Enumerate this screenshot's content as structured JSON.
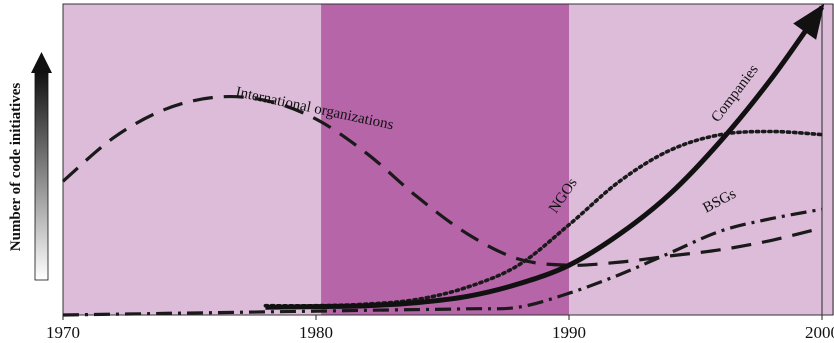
{
  "chart_data": {
    "type": "line",
    "title": "",
    "xlabel": "",
    "ylabel": "Number of code initiatives",
    "xlim": [
      1970,
      2001
    ],
    "ylim": [
      0,
      10
    ],
    "x_ticks": [
      "1970",
      "1980",
      "1990",
      "2000"
    ],
    "x_tick_values": [
      1970,
      1980,
      1990,
      2000
    ],
    "grid": false,
    "legend": "none",
    "background_bands": [
      {
        "from": 1970,
        "to": 1980.2,
        "color": "#dcbcd9"
      },
      {
        "from": 1980.2,
        "to": 1990,
        "color": "#b665a9"
      },
      {
        "from": 1990,
        "to": 2001,
        "color": "#dcbcd9"
      }
    ],
    "reference_line_x": 2000,
    "series": [
      {
        "name": "International organizations",
        "style": "dashed",
        "color": "#1a1a1a",
        "x": [
          1970,
          1972,
          1974,
          1976,
          1978,
          1980,
          1982,
          1984,
          1986,
          1988,
          1990,
          1992,
          1994,
          1996,
          1998,
          2000
        ],
        "y": [
          4.3,
          5.7,
          6.6,
          7.0,
          6.9,
          6.3,
          5.2,
          3.8,
          2.6,
          1.8,
          1.6,
          1.7,
          1.9,
          2.1,
          2.4,
          2.8
        ]
      },
      {
        "name": "NGOs",
        "style": "dotted",
        "color": "#1a1a1a",
        "x": [
          1978,
          1980,
          1982,
          1984,
          1986,
          1988,
          1990,
          1992,
          1994,
          1996,
          1998,
          2000
        ],
        "y": [
          0.3,
          0.3,
          0.35,
          0.5,
          0.9,
          1.6,
          2.9,
          4.3,
          5.3,
          5.8,
          5.9,
          5.8
        ]
      },
      {
        "name": "Companies",
        "style": "solid-thick-arrow",
        "color": "#111111",
        "x": [
          1978,
          1980,
          1982,
          1984,
          1986,
          1988,
          1990,
          1992,
          1994,
          1996,
          1998,
          2000
        ],
        "y": [
          0.25,
          0.27,
          0.3,
          0.4,
          0.6,
          1.0,
          1.6,
          2.6,
          3.9,
          5.6,
          7.6,
          9.9
        ]
      },
      {
        "name": "BSGs",
        "style": "dash-dot",
        "color": "#1a1a1a",
        "x": [
          1970,
          1974,
          1978,
          1982,
          1986,
          1988,
          1990,
          1992,
          1994,
          1996,
          1998,
          2000
        ],
        "y": [
          0.0,
          0.05,
          0.1,
          0.15,
          0.2,
          0.25,
          0.7,
          1.3,
          2.0,
          2.7,
          3.1,
          3.4
        ]
      }
    ],
    "annotations": [
      {
        "text": "International organizations",
        "series": "International organizations"
      },
      {
        "text": "NGOs",
        "series": "NGOs"
      },
      {
        "text": "Companies",
        "series": "Companies"
      },
      {
        "text": "BSGs",
        "series": "BSGs"
      }
    ]
  }
}
